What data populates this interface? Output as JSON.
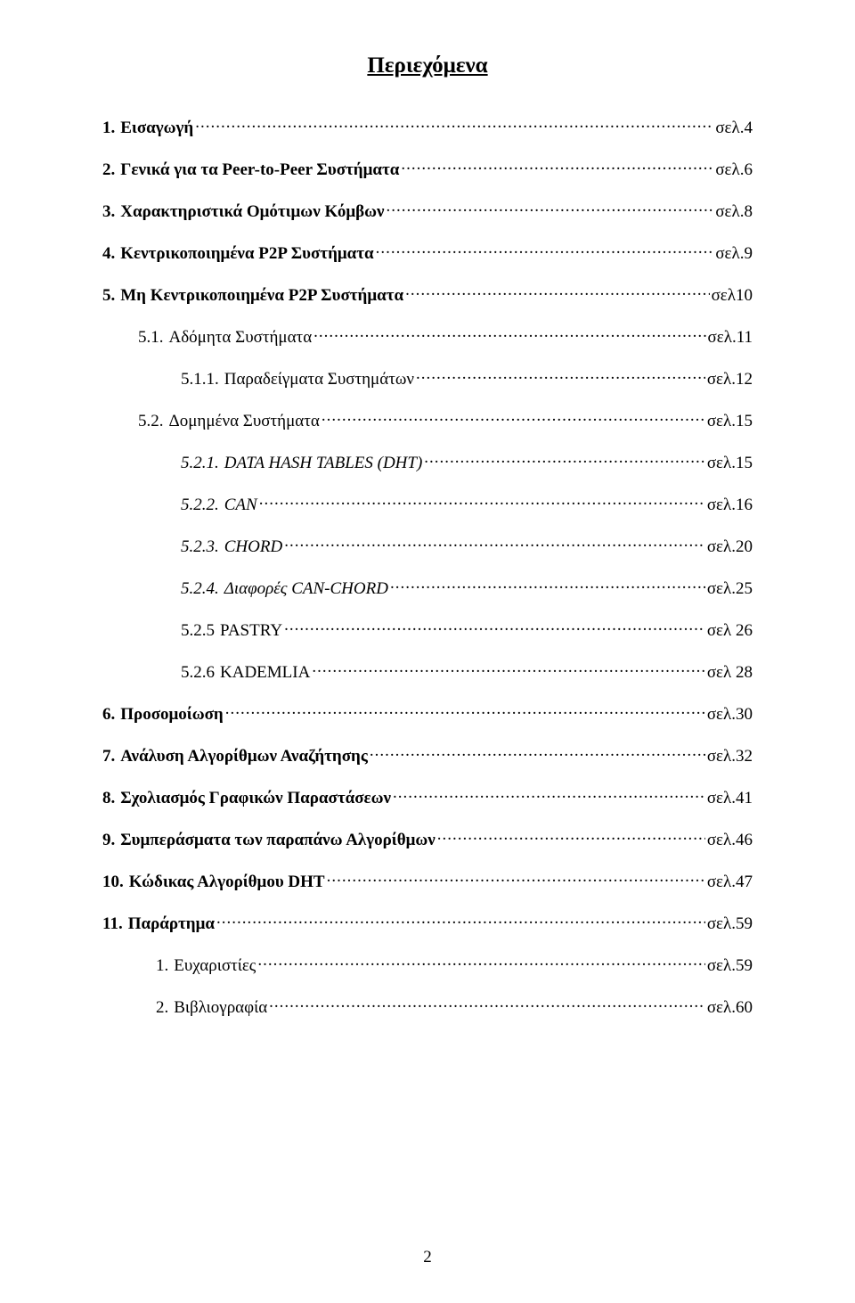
{
  "title": "Περιεχόμενα",
  "page_number": "2",
  "entries": [
    {
      "level": 0,
      "num": "1.",
      "label": "Εισαγωγή",
      "page": "σελ.4",
      "italic": false
    },
    {
      "level": 0,
      "num": "2.",
      "label": "Γενικά για τα Peer-to-Peer Συστήματα",
      "page": "σελ.6",
      "italic": false
    },
    {
      "level": 0,
      "num": "3.",
      "label": "Χαρακτηριστικά Ομότιμων Κόμβων",
      "page": "σελ.8",
      "italic": false
    },
    {
      "level": 0,
      "num": "4.",
      "label": "Κεντρικοποιημένα P2P Συστήματα",
      "page": "σελ.9",
      "italic": false
    },
    {
      "level": 0,
      "num": "5.",
      "label": "Μη Κεντρικοποιημένα  P2P Συστήματα",
      "page": "σελ10",
      "italic": false
    },
    {
      "level": 1,
      "num": "5.1.",
      "label": "Αδόμητα Συστήματα",
      "page": "σελ.11",
      "italic": false
    },
    {
      "level": 2,
      "num": "5.1.1.",
      "label": "Παραδείγματα Συστημάτων",
      "page": "σελ.12",
      "italic": false
    },
    {
      "level": 1,
      "num": "5.2.",
      "label": "Δομημένα Συστήματα",
      "page": "σελ.15",
      "italic": false
    },
    {
      "level": 2,
      "num": "5.2.1.",
      "label": "DATA HASH TABLES (DHT)",
      "page": "σελ.15",
      "italic": true
    },
    {
      "level": 2,
      "num": "5.2.2.",
      "label": "CAN",
      "page": "σελ.16",
      "italic": true
    },
    {
      "level": 2,
      "num": "5.2.3.",
      "label": "CHORD",
      "page": "σελ.20",
      "italic": true
    },
    {
      "level": 2,
      "num": "5.2.4.",
      "label": "Διαφορές CAN-CHORD",
      "page": "σελ.25",
      "italic": true
    },
    {
      "level": 2,
      "num": "5.2.5",
      "label": "PASTRY",
      "page": "σελ 26",
      "italic": false
    },
    {
      "level": 2,
      "num": "5.2.6",
      "label": "KADEMLIA",
      "page": "σελ 28",
      "italic": false
    },
    {
      "level": 0,
      "num": "6.",
      "label": "Προσομοίωση",
      "page": "σελ.30",
      "italic": false
    },
    {
      "level": 0,
      "num": "7.",
      "label": "Ανάλυση Αλγορίθμων Αναζήτησης",
      "page": "σελ.32",
      "italic": false
    },
    {
      "level": 0,
      "num": "8.",
      "label": "Σχολιασμός Γραφικών Παραστάσεων",
      "page": "σελ.41",
      "italic": false
    },
    {
      "level": 0,
      "num": "9.",
      "label": "Συμπεράσματα των παραπάνω Αλγορίθμων",
      "page": "σελ.46",
      "italic": false
    },
    {
      "level": 0,
      "num": "10.",
      "label": "Κώδικας Αλγορίθμου DHT",
      "page": "σελ.47",
      "italic": false
    },
    {
      "level": 0,
      "num": "11.",
      "label": "Παράρτημα",
      "page": "σελ.59",
      "italic": false
    },
    {
      "level": "numbered-sub",
      "num": "1.",
      "label": "Ευχαριστίες",
      "page": "σελ.59",
      "italic": false
    },
    {
      "level": "numbered-sub",
      "num": "2.",
      "label": "Βιβλιογραφία",
      "page": "σελ.60",
      "italic": false
    }
  ]
}
